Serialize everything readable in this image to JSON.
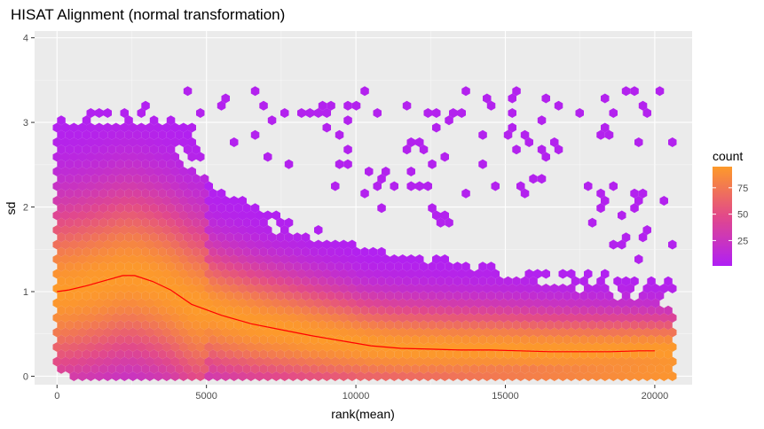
{
  "chart_data": {
    "type": "heatmap",
    "subtype": "hexbin",
    "title": "HISAT Alignment (normal transformation)",
    "xlabel": "rank(mean)",
    "ylabel": "sd",
    "xlim": [
      -750,
      21250
    ],
    "ylim": [
      -0.1,
      4.08
    ],
    "x_ticks": [
      0,
      5000,
      10000,
      15000,
      20000
    ],
    "x_tick_labels": [
      "0",
      "5000",
      "10000",
      "15000",
      "20000"
    ],
    "y_ticks": [
      0,
      1,
      2,
      3,
      4
    ],
    "y_tick_labels": [
      "0",
      "1",
      "2",
      "3",
      "4"
    ],
    "grid": true,
    "legend": {
      "title": "count",
      "position": "right",
      "ticks": [
        25,
        50,
        75
      ],
      "tick_labels": [
        "25",
        "50",
        "75"
      ],
      "range": [
        1,
        95
      ],
      "low_color": "#b01ff5",
      "mid_color": "#e2498a",
      "high_color": "#fd9a2a"
    },
    "panel_color": "#ebebeb",
    "gridline_color": "#ffffff",
    "series": [
      {
        "name": "trend",
        "type": "line",
        "color": "#ff0000",
        "x": [
          0,
          400,
          1000,
          1600,
          2200,
          2600,
          3200,
          3800,
          4500,
          5500,
          6500,
          7500,
          8500,
          9500,
          10500,
          11500,
          12500,
          13500,
          14500,
          15500,
          16500,
          17500,
          18500,
          19500,
          20000
        ],
        "y": [
          1.0,
          1.02,
          1.07,
          1.13,
          1.19,
          1.19,
          1.12,
          1.02,
          0.85,
          0.72,
          0.62,
          0.55,
          0.48,
          0.42,
          0.36,
          0.33,
          0.32,
          0.31,
          0.31,
          0.3,
          0.29,
          0.29,
          0.29,
          0.3,
          0.3
        ]
      }
    ]
  }
}
